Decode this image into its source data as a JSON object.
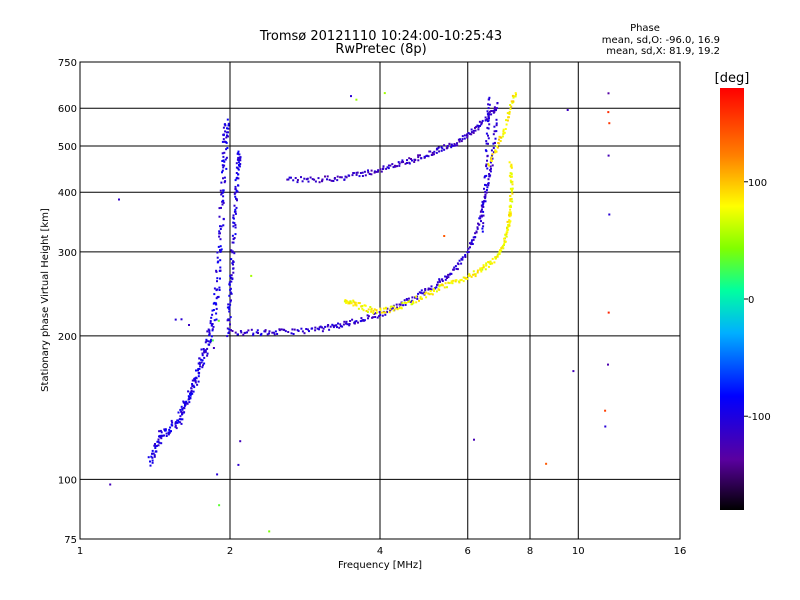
{
  "chart_data": {
    "type": "scatter",
    "title": "Tromsø 20121110 10:24:00-10:25:43",
    "subtitle": "RwPretec (8p)",
    "xlabel": "Frequency [MHz]",
    "ylabel": "Stationary phase Virtual Height [km]",
    "x_scale": "log",
    "y_scale": "log",
    "xlim": [
      1,
      16
    ],
    "ylim": [
      75,
      750
    ],
    "x_ticks": [
      1,
      2,
      4,
      6,
      8,
      10,
      16
    ],
    "x_tick_labels": [
      "1",
      "2",
      "4",
      "6",
      "8",
      "10",
      "16"
    ],
    "y_ticks": [
      75,
      100,
      200,
      300,
      400,
      500,
      600,
      750
    ],
    "y_tick_labels": [
      "75",
      "100",
      "200",
      "300",
      "400",
      "500",
      "600",
      "750"
    ],
    "grid": true,
    "phase_stats": {
      "heading": "Phase",
      "line_o": "mean, sd,O: -96.0, 16.9",
      "line_x": "mean, sd,X: 81.9, 19.2"
    },
    "colorbar": {
      "label": "[deg]",
      "range": [
        -180,
        180
      ],
      "ticks": [
        100,
        0,
        -100
      ],
      "tick_labels": [
        "100",
        "0",
        "-100"
      ],
      "colormap": "rainbow"
    },
    "traces": [
      {
        "name": "",
        "phase": -100,
        "spread": 0.012,
        "density": 3,
        "points": [
          [
            1.38,
            108
          ],
          [
            1.42,
            118
          ],
          [
            1.46,
            124
          ],
          [
            1.52,
            128
          ],
          [
            1.58,
            134
          ],
          [
            1.62,
            142
          ],
          [
            1.66,
            150
          ],
          [
            1.7,
            160
          ],
          [
            1.74,
            172
          ],
          [
            1.78,
            185
          ],
          [
            1.82,
            200
          ],
          [
            1.86,
            222
          ],
          [
            1.89,
            260
          ],
          [
            1.91,
            310
          ],
          [
            1.93,
            380
          ],
          [
            1.95,
            450
          ],
          [
            1.96,
            520
          ],
          [
            1.97,
            555
          ]
        ]
      },
      {
        "name": "",
        "phase": -100,
        "spread": 0.008,
        "density": 3,
        "points": [
          [
            1.98,
            200
          ],
          [
            2.0,
            240
          ],
          [
            2.02,
            280
          ],
          [
            2.04,
            340
          ],
          [
            2.06,
            400
          ],
          [
            2.08,
            460
          ],
          [
            2.09,
            480
          ]
        ]
      },
      {
        "name": "",
        "phase": -110,
        "spread": 0.006,
        "density": 3,
        "points": [
          [
            2.02,
            204
          ],
          [
            2.3,
            203
          ],
          [
            2.6,
            204
          ],
          [
            3.0,
            206
          ],
          [
            3.3,
            210
          ],
          [
            3.6,
            215
          ],
          [
            4.0,
            222
          ],
          [
            4.4,
            232
          ],
          [
            4.8,
            244
          ],
          [
            5.2,
            256
          ],
          [
            5.6,
            272
          ],
          [
            6.0,
            300
          ],
          [
            6.3,
            340
          ],
          [
            6.5,
            390
          ],
          [
            6.7,
            460
          ],
          [
            6.85,
            560
          ]
        ]
      },
      {
        "name": "",
        "phase": 80,
        "spread": 0.006,
        "density": 3,
        "points": [
          [
            3.4,
            238
          ],
          [
            3.6,
            232
          ],
          [
            3.9,
            225
          ],
          [
            4.3,
            228
          ],
          [
            4.8,
            240
          ],
          [
            5.3,
            252
          ],
          [
            5.8,
            262
          ],
          [
            6.3,
            272
          ],
          [
            6.7,
            285
          ],
          [
            7.0,
            300
          ],
          [
            7.2,
            330
          ],
          [
            7.3,
            360
          ],
          [
            7.35,
            400
          ],
          [
            7.3,
            460
          ]
        ]
      },
      {
        "name": "",
        "phase": -115,
        "spread": 0.006,
        "density": 3,
        "points": [
          [
            2.6,
            425
          ],
          [
            3.0,
            425
          ],
          [
            3.4,
            430
          ],
          [
            3.8,
            440
          ],
          [
            4.2,
            452
          ],
          [
            4.6,
            466
          ],
          [
            5.0,
            480
          ],
          [
            5.4,
            496
          ],
          [
            5.8,
            512
          ],
          [
            6.2,
            540
          ],
          [
            6.6,
            575
          ],
          [
            6.9,
            610
          ]
        ]
      },
      {
        "name": "",
        "phase": 85,
        "spread": 0.006,
        "density": 2,
        "points": [
          [
            6.6,
            460
          ],
          [
            6.9,
            500
          ],
          [
            7.1,
            540
          ],
          [
            7.3,
            600
          ],
          [
            7.5,
            650
          ]
        ]
      },
      {
        "name": "",
        "phase": -105,
        "spread": 0.006,
        "density": 2,
        "points": [
          [
            6.4,
            330
          ],
          [
            6.5,
            400
          ],
          [
            6.55,
            480
          ],
          [
            6.6,
            560
          ],
          [
            6.62,
            630
          ]
        ]
      },
      {
        "name": "",
        "phase": -120,
        "spread": 0.004,
        "density": 1,
        "points": [
          [
            1.55,
            215
          ],
          [
            1.6,
            218
          ],
          [
            1.65,
            212
          ],
          [
            1.2,
            385
          ],
          [
            1.15,
            97
          ],
          [
            1.8,
            205
          ],
          [
            1.85,
            190
          ],
          [
            2.1,
            120
          ],
          [
            2.08,
            108
          ],
          [
            1.88,
            103
          ],
          [
            3.5,
            640
          ],
          [
            6.2,
            122
          ],
          [
            9.5,
            600
          ],
          [
            9.8,
            170
          ],
          [
            11.5,
            640
          ],
          [
            11.5,
            480
          ],
          [
            11.5,
            360
          ],
          [
            11.5,
            175
          ],
          [
            11.3,
            130
          ]
        ]
      },
      {
        "name": "",
        "phase": 40,
        "spread": 0.004,
        "density": 1,
        "points": [
          [
            2.4,
            78
          ],
          [
            1.9,
            88
          ],
          [
            1.85,
            195
          ],
          [
            1.9,
            215
          ],
          [
            2.2,
            265
          ],
          [
            3.6,
            630
          ],
          [
            4.1,
            645
          ]
        ]
      },
      {
        "name": "",
        "phase": 150,
        "spread": 0.004,
        "density": 1,
        "points": [
          [
            8.6,
            108
          ],
          [
            11.5,
            225
          ],
          [
            11.5,
            560
          ],
          [
            11.3,
            140
          ],
          [
            5.4,
            326
          ],
          [
            11.5,
            590
          ]
        ]
      }
    ]
  }
}
